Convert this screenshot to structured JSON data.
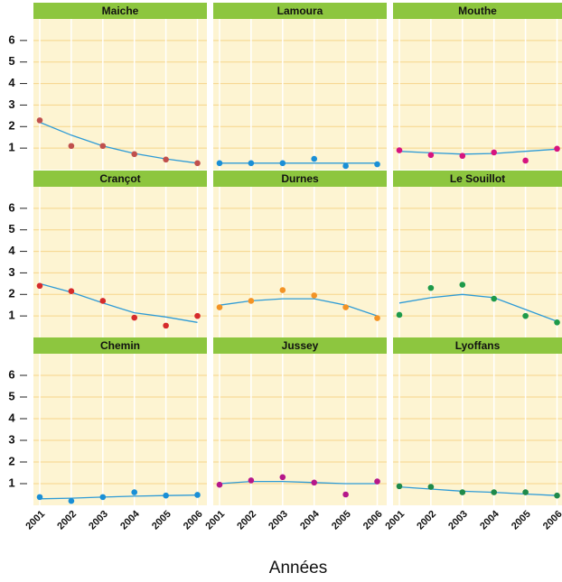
{
  "xlabel": "Années",
  "chart_data": [
    {
      "type": "scatter",
      "title": "Maiche",
      "x": [
        2001,
        2002,
        2003,
        2004,
        2005,
        2006
      ],
      "values": [
        2.29,
        1.1,
        1.1,
        0.72,
        0.47,
        0.3
      ],
      "trend": [
        2.2,
        1.6,
        1.1,
        0.75,
        0.5,
        0.3
      ],
      "color": "#c0504d",
      "line_color": "#2e9bd6",
      "xlim": [
        2000.8,
        2006.3
      ],
      "xticks": [
        2001,
        2002,
        2003,
        2004,
        2005,
        2006
      ],
      "ylim": [
        0,
        7
      ],
      "yticks": [
        1,
        2,
        3,
        4,
        5,
        6
      ],
      "grid": true
    },
    {
      "type": "scatter",
      "title": "Lamoura",
      "x": [
        2001,
        2002,
        2003,
        2004,
        2005,
        2006
      ],
      "values": [
        0.3,
        0.3,
        0.3,
        0.5,
        0.17,
        0.25
      ],
      "trend": [
        0.3,
        0.3,
        0.3,
        0.3,
        0.3,
        0.3
      ],
      "color": "#1a8fd6",
      "line_color": "#2e9bd6",
      "xlim": [
        2000.8,
        2006.3
      ],
      "xticks": [
        2001,
        2002,
        2003,
        2004,
        2005,
        2006
      ],
      "ylim": [
        0,
        7
      ],
      "yticks": [
        1,
        2,
        3,
        4,
        5,
        6
      ],
      "grid": true
    },
    {
      "type": "scatter",
      "title": "Mouthe",
      "x": [
        2001,
        2002,
        2003,
        2004,
        2005,
        2006
      ],
      "values": [
        0.9,
        0.68,
        0.64,
        0.8,
        0.42,
        0.97
      ],
      "trend": [
        0.85,
        0.78,
        0.72,
        0.75,
        0.85,
        0.95
      ],
      "color": "#d6147f",
      "line_color": "#2e9bd6",
      "xlim": [
        2000.8,
        2006.3
      ],
      "xticks": [
        2001,
        2002,
        2003,
        2004,
        2005,
        2006
      ],
      "ylim": [
        0,
        7
      ],
      "yticks": [
        1,
        2,
        3,
        4,
        5,
        6
      ],
      "grid": true
    },
    {
      "type": "scatter",
      "title": "Crançot",
      "x": [
        2001,
        2002,
        2003,
        2004,
        2005,
        2006
      ],
      "values": [
        2.4,
        2.15,
        1.7,
        0.92,
        0.55,
        1.0
      ],
      "trend": [
        2.5,
        2.1,
        1.6,
        1.15,
        0.95,
        0.7
      ],
      "color": "#d62b2b",
      "line_color": "#2e9bd6",
      "xlim": [
        2000.8,
        2006.3
      ],
      "xticks": [
        2001,
        2002,
        2003,
        2004,
        2005,
        2006
      ],
      "ylim": [
        0,
        7
      ],
      "yticks": [
        1,
        2,
        3,
        4,
        5,
        6
      ],
      "grid": true
    },
    {
      "type": "scatter",
      "title": "Durnes",
      "x": [
        2001,
        2002,
        2003,
        2004,
        2005,
        2006
      ],
      "values": [
        1.4,
        1.7,
        2.2,
        1.95,
        1.4,
        0.9
      ],
      "trend": [
        1.5,
        1.7,
        1.8,
        1.8,
        1.5,
        1.0
      ],
      "color": "#f39325",
      "line_color": "#2e9bd6",
      "xlim": [
        2000.8,
        2006.3
      ],
      "xticks": [
        2001,
        2002,
        2003,
        2004,
        2005,
        2006
      ],
      "ylim": [
        0,
        7
      ],
      "yticks": [
        1,
        2,
        3,
        4,
        5,
        6
      ],
      "grid": true
    },
    {
      "type": "scatter",
      "title": "Le  Souillot",
      "x": [
        2001,
        2002,
        2003,
        2004,
        2005,
        2006
      ],
      "values": [
        1.05,
        2.3,
        2.45,
        1.8,
        1.0,
        0.7
      ],
      "trend": [
        1.6,
        1.85,
        2.0,
        1.85,
        1.3,
        0.75
      ],
      "color": "#1e9a4a",
      "line_color": "#2e9bd6",
      "xlim": [
        2000.8,
        2006.3
      ],
      "xticks": [
        2001,
        2002,
        2003,
        2004,
        2005,
        2006
      ],
      "ylim": [
        0,
        7
      ],
      "yticks": [
        1,
        2,
        3,
        4,
        5,
        6
      ],
      "grid": true
    },
    {
      "type": "scatter",
      "title": "Chemin",
      "x": [
        2001,
        2002,
        2003,
        2004,
        2005,
        2006
      ],
      "values": [
        0.38,
        0.2,
        0.38,
        0.6,
        0.45,
        0.48
      ],
      "trend": [
        0.3,
        0.33,
        0.38,
        0.42,
        0.45,
        0.47
      ],
      "color": "#1a8fd6",
      "line_color": "#2e9bd6",
      "xlim": [
        2000.8,
        2006.3
      ],
      "xticks": [
        2001,
        2002,
        2003,
        2004,
        2005,
        2006
      ],
      "ylim": [
        0,
        7
      ],
      "yticks": [
        1,
        2,
        3,
        4,
        5,
        6
      ],
      "grid": true
    },
    {
      "type": "scatter",
      "title": "Jussey",
      "x": [
        2001,
        2002,
        2003,
        2004,
        2005,
        2006
      ],
      "values": [
        0.95,
        1.15,
        1.3,
        1.05,
        0.5,
        1.1
      ],
      "trend": [
        1.0,
        1.1,
        1.1,
        1.05,
        1.0,
        1.0
      ],
      "color": "#b5178a",
      "line_color": "#2e9bd6",
      "xlim": [
        2000.8,
        2006.3
      ],
      "xticks": [
        2001,
        2002,
        2003,
        2004,
        2005,
        2006
      ],
      "ylim": [
        0,
        7
      ],
      "yticks": [
        1,
        2,
        3,
        4,
        5,
        6
      ],
      "grid": true
    },
    {
      "type": "scatter",
      "title": "Lyoffans",
      "x": [
        2001,
        2002,
        2003,
        2004,
        2005,
        2006
      ],
      "values": [
        0.88,
        0.85,
        0.6,
        0.6,
        0.6,
        0.45
      ],
      "trend": [
        0.85,
        0.75,
        0.65,
        0.6,
        0.52,
        0.45
      ],
      "color": "#1e8a4a",
      "line_color": "#2e9bd6",
      "xlim": [
        2000.8,
        2006.3
      ],
      "xticks": [
        2001,
        2002,
        2003,
        2004,
        2005,
        2006
      ],
      "ylim": [
        0,
        7
      ],
      "yticks": [
        1,
        2,
        3,
        4,
        5,
        6
      ],
      "grid": true
    }
  ]
}
